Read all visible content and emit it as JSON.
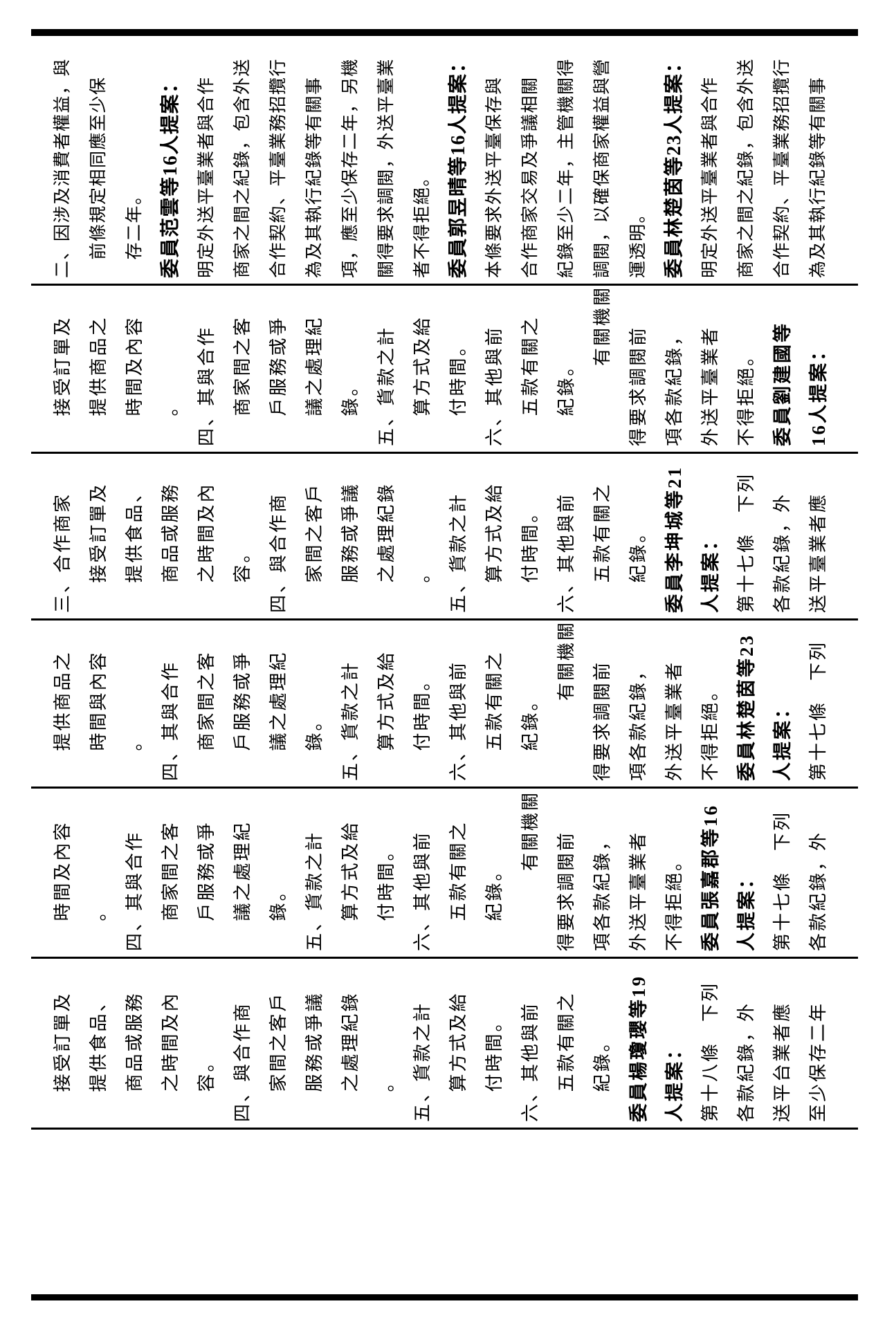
{
  "colors": {
    "paper": "#ffffff",
    "ink": "#000000"
  },
  "bands": [
    {
      "id": "band-1",
      "lines": [
        {
          "t": "二、因涉及消費者權益，與",
          "i": 0
        },
        {
          "t": "前條規定相同應至少保",
          "i": 1
        },
        {
          "t": "存二年。",
          "i": 1
        },
        {
          "t": "委員范雲等16人提案：",
          "i": 0,
          "b": 1
        },
        {
          "t": "明定外送平臺業者與合作",
          "i": 0
        },
        {
          "t": "商家之間之紀錄，包含外送",
          "i": 0
        },
        {
          "t": "合作契約、平臺業務招攬行",
          "i": 0
        },
        {
          "t": "為及其執行紀錄等有關事",
          "i": 0
        },
        {
          "t": "項，應至少保存二年，另機",
          "i": 0
        },
        {
          "t": "關得要求調閱，外送平臺業",
          "i": 0
        },
        {
          "t": "者不得拒絕。",
          "i": 0
        },
        {
          "t": "委員郭昱晴等16人提案：",
          "i": 0,
          "b": 1
        },
        {
          "t": "本條要求外送平臺保存與",
          "i": 0
        },
        {
          "t": "合作商家交易及爭議相關",
          "i": 0
        },
        {
          "t": "紀錄至少二年，主管機關得",
          "i": 0
        },
        {
          "t": "調閱，以確保商家權益與營",
          "i": 0
        },
        {
          "t": "運透明。",
          "i": 0
        },
        {
          "t": "委員林楚茵等23人提案：",
          "i": 0,
          "b": 1
        },
        {
          "t": "明定外送平臺業者與合作",
          "i": 0
        },
        {
          "t": "商家之間之紀錄，包含外送",
          "i": 0
        },
        {
          "t": "合作契約、平臺業務招攬行",
          "i": 0
        },
        {
          "t": "為及其執行紀錄等有關事",
          "i": 0
        }
      ]
    },
    {
      "id": "band-2",
      "lines": [
        {
          "t": "接受訂單及",
          "i": 1.5
        },
        {
          "t": "提供商品之",
          "i": 1.5
        },
        {
          "t": "時間及內容",
          "i": 1.5
        },
        {
          "t": "。",
          "i": 1.5
        },
        {
          "t": "四、其與合作",
          "i": 0
        },
        {
          "t": "商家間之客",
          "i": 1.5
        },
        {
          "t": "戶服務或爭",
          "i": 1.5
        },
        {
          "t": "議之處理紀",
          "i": 1.5
        },
        {
          "t": "錄。",
          "i": 1.5
        },
        {
          "t": "五、貨款之計",
          "i": 0
        },
        {
          "t": "算方式及給",
          "i": 1.5
        },
        {
          "t": "付時間。",
          "i": 1.5
        },
        {
          "t": "六、其他與前",
          "i": 0
        },
        {
          "t": "五款有關之",
          "i": 1.5
        },
        {
          "t": "紀錄。",
          "i": 1.5
        },
        {
          "t": "有關機關",
          "i": 4
        },
        {
          "t": "得要求調閱前",
          "i": 0
        },
        {
          "t": "項各款紀錄，",
          "i": 0
        },
        {
          "t": "外送平臺業者",
          "i": 0
        },
        {
          "t": "不得拒絕。",
          "i": 0
        },
        {
          "t": "委員劉建國等",
          "i": 0,
          "b": 1
        },
        {
          "t": "16人提案：",
          "i": 0,
          "b": 1
        }
      ]
    },
    {
      "id": "band-3",
      "lines": [
        {
          "t": "三、合作商家",
          "i": 0
        },
        {
          "t": "接受訂單及",
          "i": 1.5
        },
        {
          "t": "提供食品、",
          "i": 1.5
        },
        {
          "t": "商品或服務",
          "i": 1.5
        },
        {
          "t": "之時間及內",
          "i": 1.5
        },
        {
          "t": "容。",
          "i": 1.5
        },
        {
          "t": "四、與合作商",
          "i": 0
        },
        {
          "t": "家間之客戶",
          "i": 1.5
        },
        {
          "t": "服務或爭議",
          "i": 1.5
        },
        {
          "t": "之處理紀錄",
          "i": 1.5
        },
        {
          "t": "。",
          "i": 1.5
        },
        {
          "t": "五、貨款之計",
          "i": 0
        },
        {
          "t": "算方式及給",
          "i": 1.5
        },
        {
          "t": "付時間。",
          "i": 1.5
        },
        {
          "t": "六、其他與前",
          "i": 0
        },
        {
          "t": "五款有關之",
          "i": 1.5
        },
        {
          "t": "紀錄。",
          "i": 1.5
        },
        {
          "t": "委員李坤城等21",
          "i": 0,
          "b": 1
        },
        {
          "t": "人提案：",
          "i": 0,
          "b": 1
        },
        {
          "t": "第十七條　下列",
          "i": 0
        },
        {
          "t": "各款紀錄，外",
          "i": 0
        },
        {
          "t": "送平臺業者應",
          "i": 0
        }
      ]
    },
    {
      "id": "band-4",
      "lines": [
        {
          "t": "提供商品之",
          "i": 1.5
        },
        {
          "t": "時間與內容",
          "i": 1.5
        },
        {
          "t": "。",
          "i": 1.5
        },
        {
          "t": "四、其與合作",
          "i": 0
        },
        {
          "t": "商家間之客",
          "i": 1.5
        },
        {
          "t": "戶服務或爭",
          "i": 1.5
        },
        {
          "t": "議之處理紀",
          "i": 1.5
        },
        {
          "t": "錄。",
          "i": 1.5
        },
        {
          "t": "五、貨款之計",
          "i": 0
        },
        {
          "t": "算方式及給",
          "i": 1.5
        },
        {
          "t": "付時間。",
          "i": 1.5
        },
        {
          "t": "六、其他與前",
          "i": 0
        },
        {
          "t": "五款有關之",
          "i": 1.5
        },
        {
          "t": "紀錄。",
          "i": 1.5
        },
        {
          "t": "有關機關",
          "i": 4
        },
        {
          "t": "得要求調閱前",
          "i": 0
        },
        {
          "t": "項各款紀錄，",
          "i": 0
        },
        {
          "t": "外送平臺業者",
          "i": 0
        },
        {
          "t": "不得拒絕。",
          "i": 0
        },
        {
          "t": "委員林楚茵等23",
          "i": 0,
          "b": 1
        },
        {
          "t": "人提案：",
          "i": 0,
          "b": 1
        },
        {
          "t": "第十七條　下列",
          "i": 0
        }
      ]
    },
    {
      "id": "band-5",
      "lines": [
        {
          "t": "時間及內容",
          "i": 1.5
        },
        {
          "t": "。",
          "i": 1.5
        },
        {
          "t": "四、其與合作",
          "i": 0
        },
        {
          "t": "商家間之客",
          "i": 1.5
        },
        {
          "t": "戶服務或爭",
          "i": 1.5
        },
        {
          "t": "議之處理紀",
          "i": 1.5
        },
        {
          "t": "錄。",
          "i": 1.5
        },
        {
          "t": "五、貨款之計",
          "i": 0
        },
        {
          "t": "算方式及給",
          "i": 1.5
        },
        {
          "t": "付時間。",
          "i": 1.5
        },
        {
          "t": "六、其他與前",
          "i": 0
        },
        {
          "t": "五款有關之",
          "i": 1.5
        },
        {
          "t": "紀錄。",
          "i": 1.5
        },
        {
          "t": "有關機關",
          "i": 4
        },
        {
          "t": "得要求調閱前",
          "i": 0
        },
        {
          "t": "項各款紀錄，",
          "i": 0
        },
        {
          "t": "外送平臺業者",
          "i": 0
        },
        {
          "t": "不得拒絕。",
          "i": 0
        },
        {
          "t": "委員張嘉郡等16",
          "i": 0,
          "b": 1
        },
        {
          "t": "人提案：",
          "i": 0,
          "b": 1
        },
        {
          "t": "第十七條　下列",
          "i": 0
        },
        {
          "t": "各款紀錄，外",
          "i": 0
        }
      ]
    },
    {
      "id": "band-6",
      "lines": [
        {
          "t": "接受訂單及",
          "i": 1.5
        },
        {
          "t": "提供食品、",
          "i": 1.5
        },
        {
          "t": "商品或服務",
          "i": 1.5
        },
        {
          "t": "之時間及內",
          "i": 1.5
        },
        {
          "t": "容。",
          "i": 1.5
        },
        {
          "t": "四、與合作商",
          "i": 0
        },
        {
          "t": "家間之客戶",
          "i": 1.5
        },
        {
          "t": "服務或爭議",
          "i": 1.5
        },
        {
          "t": "之處理紀錄",
          "i": 1.5
        },
        {
          "t": "。",
          "i": 1.5
        },
        {
          "t": "五、貨款之計",
          "i": 0
        },
        {
          "t": "算方式及給",
          "i": 1.5
        },
        {
          "t": "付時間。",
          "i": 1.5
        },
        {
          "t": "六、其他與前",
          "i": 0
        },
        {
          "t": "五款有關之",
          "i": 1.5
        },
        {
          "t": "紀錄。",
          "i": 1.5
        },
        {
          "t": "委員楊瓊瓔等19",
          "i": 0,
          "b": 1
        },
        {
          "t": "人提案：",
          "i": 0,
          "b": 1
        },
        {
          "t": "第十八條　下列",
          "i": 0
        },
        {
          "t": "各款紀錄，外",
          "i": 0
        },
        {
          "t": "送平台業者應",
          "i": 0
        },
        {
          "t": "至少保存二年",
          "i": 0
        }
      ]
    }
  ]
}
